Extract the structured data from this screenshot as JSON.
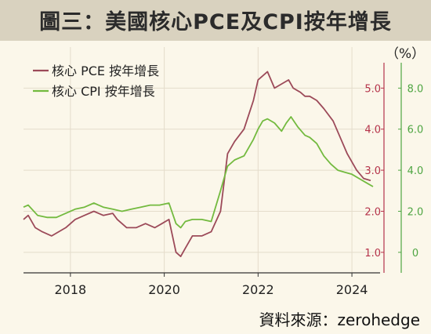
{
  "title": "圖三：美國核心PCE及CPI按年增長",
  "source": "資料來源：zerohedge",
  "colors": {
    "pce": "#9c4a59",
    "cpi": "#73ba3f",
    "left_axis": "#b5334a",
    "right_axis": "#4ea542",
    "grid": "#e4dccb",
    "background": "#fbf7ea",
    "title_bar": "#d9d2bf"
  },
  "chart_data": {
    "type": "line",
    "unit_label": "（%）",
    "xlim": [
      2017.0,
      2024.6
    ],
    "x_ticks": [
      2018,
      2020,
      2022,
      2024
    ],
    "x_tick_labels": [
      "2018",
      "2020",
      "2022",
      "2024"
    ],
    "legend_position": "top-left",
    "grid": true,
    "y_left": {
      "range": [
        0.5,
        6.0
      ],
      "ticks": [
        1.0,
        2.0,
        3.0,
        4.0,
        5.0
      ],
      "tick_labels": [
        "1.0",
        "2.0",
        "3.0",
        "4.0",
        "5.0"
      ]
    },
    "y_right": {
      "range": [
        -1.0,
        10.0
      ],
      "ticks": [
        0,
        2.0,
        4.0,
        6.0,
        8.0
      ],
      "tick_labels": [
        "0",
        "2.0",
        "4.0",
        "6.0",
        "8.0"
      ]
    },
    "series": [
      {
        "name": "核心 PCE 按年增長",
        "axis": "left",
        "x": [
          2017.0,
          2017.1,
          2017.25,
          2017.4,
          2017.6,
          2017.75,
          2017.9,
          2018.1,
          2018.3,
          2018.5,
          2018.7,
          2018.9,
          2019.0,
          2019.2,
          2019.4,
          2019.6,
          2019.8,
          2019.95,
          2020.1,
          2020.25,
          2020.35,
          2020.45,
          2020.6,
          2020.8,
          2021.0,
          2021.2,
          2021.35,
          2021.5,
          2021.7,
          2021.9,
          2022.0,
          2022.1,
          2022.2,
          2022.35,
          2022.5,
          2022.65,
          2022.75,
          2022.9,
          2023.0,
          2023.1,
          2023.25,
          2023.4,
          2023.6,
          2023.75,
          2023.9,
          2024.1,
          2024.25,
          2024.4
        ],
        "y": [
          1.8,
          1.9,
          1.6,
          1.5,
          1.4,
          1.5,
          1.6,
          1.8,
          1.9,
          2.0,
          1.9,
          1.95,
          1.8,
          1.6,
          1.6,
          1.7,
          1.6,
          1.7,
          1.8,
          1.0,
          0.9,
          1.1,
          1.4,
          1.4,
          1.5,
          2.0,
          3.4,
          3.7,
          4.0,
          4.7,
          5.2,
          5.3,
          5.4,
          5.0,
          5.1,
          5.2,
          5.0,
          4.9,
          4.8,
          4.8,
          4.7,
          4.5,
          4.2,
          3.8,
          3.4,
          3.0,
          2.8,
          2.75
        ]
      },
      {
        "name": "核心 CPI 按年增長",
        "axis": "right",
        "x": [
          2017.0,
          2017.1,
          2017.3,
          2017.5,
          2017.7,
          2017.9,
          2018.1,
          2018.3,
          2018.5,
          2018.7,
          2018.9,
          2019.1,
          2019.3,
          2019.5,
          2019.7,
          2019.9,
          2020.1,
          2020.25,
          2020.35,
          2020.45,
          2020.6,
          2020.8,
          2021.0,
          2021.2,
          2021.35,
          2021.5,
          2021.7,
          2021.9,
          2022.0,
          2022.1,
          2022.2,
          2022.35,
          2022.5,
          2022.6,
          2022.7,
          2022.85,
          2023.0,
          2023.1,
          2023.25,
          2023.4,
          2023.55,
          2023.7,
          2023.85,
          2024.0,
          2024.15,
          2024.3,
          2024.45
        ],
        "y": [
          2.2,
          2.3,
          1.8,
          1.7,
          1.7,
          1.9,
          2.1,
          2.2,
          2.4,
          2.2,
          2.1,
          2.0,
          2.1,
          2.2,
          2.3,
          2.3,
          2.4,
          1.4,
          1.2,
          1.5,
          1.6,
          1.6,
          1.5,
          3.0,
          4.2,
          4.5,
          4.7,
          5.5,
          6.0,
          6.4,
          6.5,
          6.3,
          5.9,
          6.3,
          6.6,
          6.1,
          5.7,
          5.6,
          5.3,
          4.7,
          4.3,
          4.0,
          3.9,
          3.8,
          3.6,
          3.4,
          3.2
        ]
      }
    ]
  }
}
